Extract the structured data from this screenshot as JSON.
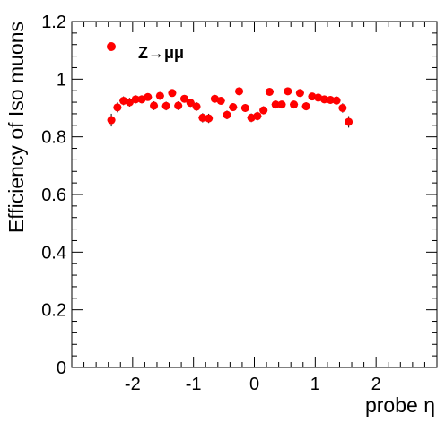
{
  "chart_data": {
    "type": "scatter",
    "title": "",
    "xlabel": "probe η",
    "ylabel": "Efficiency of Iso muons",
    "xlim": [
      -3,
      3
    ],
    "ylim": [
      0,
      1.2
    ],
    "xticks": [
      -2,
      -1,
      0,
      1,
      2
    ],
    "xtick_labels": [
      "-2",
      "-1",
      "0",
      "1",
      "2"
    ],
    "yticks": [
      0,
      0.2,
      0.4,
      0.6,
      0.8,
      1.0,
      1.2
    ],
    "ytick_labels": [
      "0",
      "0.2",
      "0.4",
      "0.6",
      "0.8",
      "1",
      "1.2"
    ],
    "grid": false,
    "legend": {
      "position": "top-left",
      "entries": [
        "Z→μμ"
      ]
    },
    "marker_color": "#ff0000",
    "series": [
      {
        "name": "Z→μμ",
        "points": [
          {
            "x": -2.35,
            "y": 0.858,
            "err": 0.022
          },
          {
            "x": -2.25,
            "y": 0.902,
            "err": 0.017
          },
          {
            "x": -2.15,
            "y": 0.925,
            "err": 0.015
          },
          {
            "x": -2.05,
            "y": 0.92,
            "err": 0.015
          },
          {
            "x": -1.95,
            "y": 0.93,
            "err": 0.014
          },
          {
            "x": -1.85,
            "y": 0.93,
            "err": 0.014
          },
          {
            "x": -1.75,
            "y": 0.938,
            "err": 0.013
          },
          {
            "x": -1.65,
            "y": 0.908,
            "err": 0.015
          },
          {
            "x": -1.55,
            "y": 0.942,
            "err": 0.013
          },
          {
            "x": -1.45,
            "y": 0.907,
            "err": 0.015
          },
          {
            "x": -1.35,
            "y": 0.952,
            "err": 0.012
          },
          {
            "x": -1.25,
            "y": 0.908,
            "err": 0.015
          },
          {
            "x": -1.15,
            "y": 0.932,
            "err": 0.013
          },
          {
            "x": -1.05,
            "y": 0.918,
            "err": 0.014
          },
          {
            "x": -0.95,
            "y": 0.905,
            "err": 0.015
          },
          {
            "x": -0.85,
            "y": 0.866,
            "err": 0.016
          },
          {
            "x": -0.75,
            "y": 0.864,
            "err": 0.016
          },
          {
            "x": -0.65,
            "y": 0.932,
            "err": 0.013
          },
          {
            "x": -0.55,
            "y": 0.925,
            "err": 0.013
          },
          {
            "x": -0.45,
            "y": 0.876,
            "err": 0.015
          },
          {
            "x": -0.35,
            "y": 0.903,
            "err": 0.014
          },
          {
            "x": -0.25,
            "y": 0.958,
            "err": 0.011
          },
          {
            "x": -0.15,
            "y": 0.9,
            "err": 0.014
          },
          {
            "x": -0.05,
            "y": 0.866,
            "err": 0.015
          },
          {
            "x": 0.05,
            "y": 0.872,
            "err": 0.015
          },
          {
            "x": 0.15,
            "y": 0.892,
            "err": 0.014
          },
          {
            "x": 0.25,
            "y": 0.956,
            "err": 0.011
          },
          {
            "x": 0.35,
            "y": 0.912,
            "err": 0.013
          },
          {
            "x": 0.45,
            "y": 0.912,
            "err": 0.013
          },
          {
            "x": 0.55,
            "y": 0.958,
            "err": 0.011
          },
          {
            "x": 0.65,
            "y": 0.912,
            "err": 0.013
          },
          {
            "x": 0.75,
            "y": 0.952,
            "err": 0.011
          },
          {
            "x": 0.85,
            "y": 0.906,
            "err": 0.014
          },
          {
            "x": 0.95,
            "y": 0.94,
            "err": 0.012
          },
          {
            "x": 1.05,
            "y": 0.936,
            "err": 0.012
          },
          {
            "x": 1.15,
            "y": 0.93,
            "err": 0.013
          },
          {
            "x": 1.25,
            "y": 0.928,
            "err": 0.013
          },
          {
            "x": 1.35,
            "y": 0.926,
            "err": 0.014
          },
          {
            "x": 1.45,
            "y": 0.9,
            "err": 0.016
          },
          {
            "x": 1.55,
            "y": 0.852,
            "err": 0.02
          }
        ]
      }
    ]
  }
}
